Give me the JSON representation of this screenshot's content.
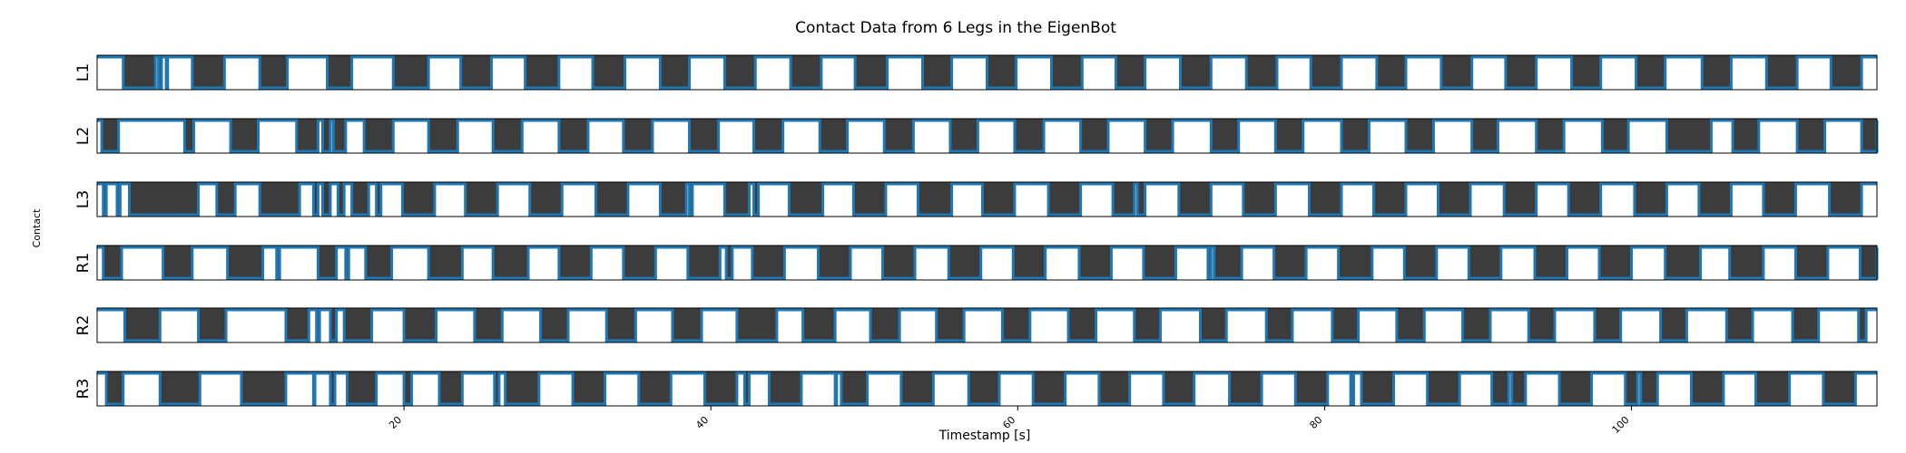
{
  "chart_data": {
    "type": "step-line",
    "title": "Contact Data from 6 Legs in the EigenBot",
    "xlabel": "Timestamp [s]",
    "ylabel": "Contact",
    "xlim": [
      0,
      116
    ],
    "xticks": [
      20,
      40,
      60,
      80,
      100
    ],
    "xtick_labels": [
      "20",
      "40",
      "60",
      "80",
      "100"
    ],
    "ylim": [
      0,
      1
    ],
    "series_color": "#1f77b4",
    "series": [
      {
        "name": "L1",
        "stance_intervals": [
          [
            1.7,
            3.8
          ],
          [
            4.0,
            4.2
          ],
          [
            4.5,
            4.6
          ],
          [
            6.2,
            8.3
          ],
          [
            10.6,
            12.4
          ],
          [
            15.0,
            16.6
          ],
          [
            19.3,
            21.6
          ],
          [
            23.7,
            25.7
          ],
          [
            27.9,
            30.1
          ],
          [
            32.3,
            34.4
          ],
          [
            36.7,
            38.6
          ],
          [
            40.9,
            42.9
          ],
          [
            45.2,
            47.2
          ],
          [
            49.4,
            51.5
          ],
          [
            53.8,
            55.7
          ],
          [
            58.0,
            59.9
          ],
          [
            62.2,
            64.2
          ],
          [
            66.4,
            68.3
          ],
          [
            70.6,
            72.6
          ],
          [
            74.9,
            76.9
          ],
          [
            79.1,
            81.1
          ],
          [
            83.4,
            85.3
          ],
          [
            87.6,
            89.6
          ],
          [
            91.8,
            93.8
          ],
          [
            96.1,
            98.0
          ],
          [
            100.3,
            102.2
          ],
          [
            104.6,
            106.5
          ],
          [
            108.8,
            110.8
          ],
          [
            113.0,
            115.0
          ]
        ]
      },
      {
        "name": "L2",
        "stance_intervals": [
          [
            0.3,
            1.4
          ],
          [
            5.7,
            6.3
          ],
          [
            8.7,
            10.5
          ],
          [
            13.0,
            14.4
          ],
          [
            14.7,
            15.2
          ],
          [
            15.4,
            16.2
          ],
          [
            17.4,
            19.3
          ],
          [
            21.6,
            23.5
          ],
          [
            25.8,
            27.7
          ],
          [
            30.1,
            32.0
          ],
          [
            34.3,
            36.2
          ],
          [
            38.6,
            40.5
          ],
          [
            42.8,
            44.7
          ],
          [
            47.1,
            48.9
          ],
          [
            51.3,
            53.2
          ],
          [
            55.6,
            57.4
          ],
          [
            59.8,
            61.7
          ],
          [
            64.1,
            65.9
          ],
          [
            68.3,
            70.1
          ],
          [
            72.6,
            74.4
          ],
          [
            76.8,
            78.6
          ],
          [
            81.1,
            82.9
          ],
          [
            85.3,
            87.1
          ],
          [
            89.6,
            91.3
          ],
          [
            93.8,
            95.6
          ],
          [
            98.1,
            99.8
          ],
          [
            102.3,
            105.2
          ],
          [
            106.6,
            108.3
          ],
          [
            110.8,
            112.6
          ],
          [
            115.0,
            116.0
          ]
        ]
      },
      {
        "name": "L3",
        "stance_intervals": [
          [
            0.4,
            0.6
          ],
          [
            1.3,
            1.5
          ],
          [
            2.1,
            6.6
          ],
          [
            7.8,
            9.0
          ],
          [
            10.6,
            13.2
          ],
          [
            14.1,
            14.4
          ],
          [
            14.7,
            15.2
          ],
          [
            15.7,
            16.1
          ],
          [
            16.6,
            17.7
          ],
          [
            18.2,
            18.5
          ],
          [
            19.9,
            22.0
          ],
          [
            24.0,
            26.1
          ],
          [
            28.2,
            30.3
          ],
          [
            32.5,
            34.6
          ],
          [
            36.7,
            38.4
          ],
          [
            38.6,
            38.8
          ],
          [
            40.9,
            42.5
          ],
          [
            42.8,
            43.1
          ],
          [
            45.1,
            47.3
          ],
          [
            49.3,
            51.4
          ],
          [
            53.5,
            55.7
          ],
          [
            57.7,
            59.8
          ],
          [
            62.0,
            64.1
          ],
          [
            66.2,
            67.6
          ],
          [
            67.8,
            68.3
          ],
          [
            70.5,
            72.6
          ],
          [
            74.7,
            76.8
          ],
          [
            79.0,
            81.1
          ],
          [
            83.2,
            85.3
          ],
          [
            87.4,
            89.5
          ],
          [
            91.7,
            93.8
          ],
          [
            95.9,
            98.0
          ],
          [
            100.2,
            102.3
          ],
          [
            104.4,
            106.5
          ],
          [
            108.6,
            110.7
          ],
          [
            112.9,
            115.0
          ]
        ]
      },
      {
        "name": "R1",
        "stance_intervals": [
          [
            0.4,
            1.6
          ],
          [
            4.3,
            6.2
          ],
          [
            8.5,
            10.8
          ],
          [
            11.7,
            11.9
          ],
          [
            14.4,
            15.6
          ],
          [
            16.2,
            16.4
          ],
          [
            17.5,
            19.2
          ],
          [
            21.6,
            23.8
          ],
          [
            25.8,
            28.1
          ],
          [
            30.1,
            32.2
          ],
          [
            34.3,
            36.4
          ],
          [
            38.5,
            40.6
          ],
          [
            41.0,
            41.4
          ],
          [
            42.7,
            44.8
          ],
          [
            47.0,
            49.1
          ],
          [
            51.2,
            53.3
          ],
          [
            55.5,
            57.6
          ],
          [
            59.7,
            61.8
          ],
          [
            64.0,
            66.1
          ],
          [
            68.2,
            70.3
          ],
          [
            72.4,
            72.6
          ],
          [
            72.8,
            74.6
          ],
          [
            76.7,
            78.8
          ],
          [
            80.9,
            83.1
          ],
          [
            85.2,
            87.3
          ],
          [
            89.4,
            91.5
          ],
          [
            93.7,
            95.8
          ],
          [
            97.9,
            100.0
          ],
          [
            102.2,
            104.5
          ],
          [
            106.4,
            108.6
          ],
          [
            110.7,
            112.8
          ],
          [
            114.9,
            116.0
          ]
        ]
      },
      {
        "name": "R2",
        "stance_intervals": [
          [
            1.8,
            4.1
          ],
          [
            6.6,
            8.4
          ],
          [
            12.3,
            13.8
          ],
          [
            14.3,
            14.5
          ],
          [
            15.2,
            15.6
          ],
          [
            16.1,
            17.9
          ],
          [
            20.0,
            22.1
          ],
          [
            24.6,
            26.4
          ],
          [
            28.9,
            30.7
          ],
          [
            33.2,
            35.1
          ],
          [
            37.5,
            39.4
          ],
          [
            41.7,
            44.3
          ],
          [
            46.0,
            48.1
          ],
          [
            50.4,
            52.3
          ],
          [
            54.7,
            56.5
          ],
          [
            59.0,
            60.8
          ],
          [
            63.3,
            65.1
          ],
          [
            67.6,
            69.3
          ],
          [
            71.9,
            73.6
          ],
          [
            76.2,
            77.9
          ],
          [
            80.5,
            82.2
          ],
          [
            84.7,
            86.5
          ],
          [
            89.0,
            90.8
          ],
          [
            93.3,
            95.0
          ],
          [
            97.6,
            99.3
          ],
          [
            101.9,
            103.6
          ],
          [
            106.2,
            107.9
          ],
          [
            110.5,
            112.2
          ],
          [
            114.8,
            115.3
          ]
        ]
      },
      {
        "name": "R3",
        "stance_intervals": [
          [
            0.6,
            1.7
          ],
          [
            4.1,
            6.7
          ],
          [
            9.4,
            12.3
          ],
          [
            14.1,
            14.2
          ],
          [
            15.2,
            15.5
          ],
          [
            16.3,
            18.2
          ],
          [
            20.0,
            20.5
          ],
          [
            22.3,
            23.8
          ],
          [
            25.9,
            26.2
          ],
          [
            26.6,
            28.8
          ],
          [
            31.0,
            33.1
          ],
          [
            35.3,
            37.4
          ],
          [
            39.6,
            41.7
          ],
          [
            42.2,
            42.5
          ],
          [
            43.8,
            45.9
          ],
          [
            48.1,
            48.2
          ],
          [
            48.5,
            50.2
          ],
          [
            52.4,
            54.5
          ],
          [
            56.8,
            58.8
          ],
          [
            61.0,
            63.1
          ],
          [
            65.3,
            67.3
          ],
          [
            69.5,
            71.5
          ],
          [
            73.8,
            75.9
          ],
          [
            78.1,
            80.2
          ],
          [
            81.7,
            81.9
          ],
          [
            82.4,
            84.5
          ],
          [
            86.7,
            88.8
          ],
          [
            90.9,
            92.0
          ],
          [
            92.2,
            93.1
          ],
          [
            95.3,
            97.4
          ],
          [
            99.6,
            100.4
          ],
          [
            100.6,
            101.7
          ],
          [
            103.9,
            106.0
          ],
          [
            108.1,
            110.3
          ],
          [
            112.5,
            114.6
          ]
        ]
      }
    ]
  }
}
